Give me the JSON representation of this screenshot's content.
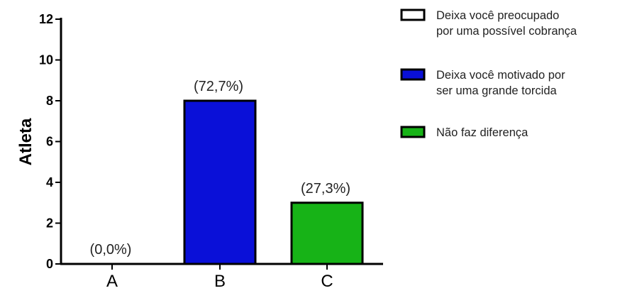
{
  "chart_data": {
    "type": "bar",
    "categories": [
      "A",
      "B",
      "C"
    ],
    "values": [
      0,
      8,
      3
    ],
    "data_labels": [
      "(0,0%)",
      "(72,7%)",
      "(27,3%)"
    ],
    "colors": [
      "#ffffff",
      "#0a10d8",
      "#17b317"
    ],
    "ylabel": "Atleta",
    "ylim": [
      0,
      12
    ],
    "yticks": [
      0,
      2,
      4,
      6,
      8,
      10,
      12
    ],
    "grid": false,
    "legend_position": "right",
    "legend": [
      {
        "lines": [
          "Deixa você preocupado",
          "por uma possível cobrança"
        ],
        "color": "#ffffff"
      },
      {
        "lines": [
          "Deixa você motivado por",
          "ser uma grande torcida"
        ],
        "color": "#0a10d8"
      },
      {
        "lines": [
          "Não faz diferença"
        ],
        "color": "#17b317"
      }
    ]
  }
}
